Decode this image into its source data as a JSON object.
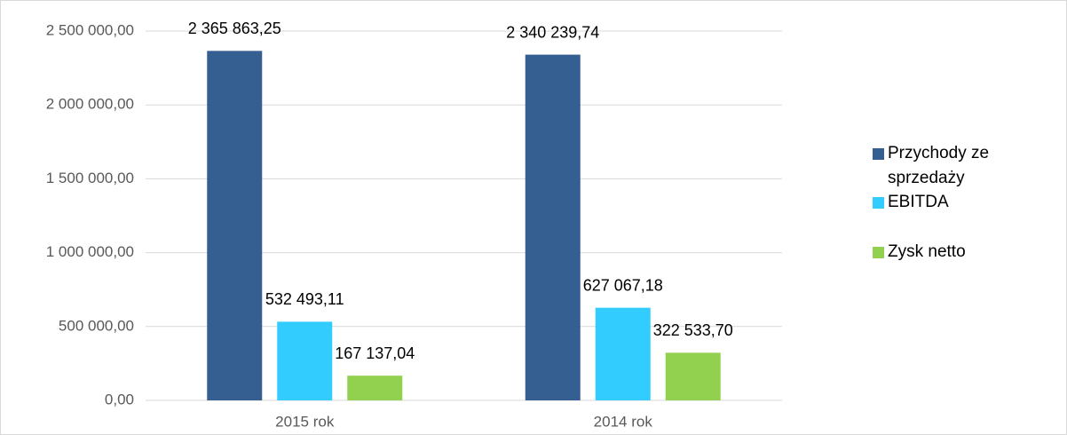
{
  "chart_data": {
    "type": "bar",
    "categories": [
      "2015 rok",
      "2014 rok"
    ],
    "series": [
      {
        "name": "Przychody ze sprzedaży",
        "color": "#365f91",
        "values": [
          2365863.25,
          2340239.74
        ],
        "value_labels": [
          "2 365 863,25",
          "2 340 239,74"
        ]
      },
      {
        "name": "EBITDA",
        "color": "#33ccff",
        "values": [
          532493.11,
          627067.18
        ],
        "value_labels": [
          "532 493,11",
          "627 067,18"
        ]
      },
      {
        "name": "Zysk netto",
        "color": "#92d050",
        "values": [
          167137.04,
          322533.7
        ],
        "value_labels": [
          "167 137,04",
          "322 533,70"
        ]
      }
    ],
    "ylim": [
      0,
      2500000
    ],
    "yticks": [
      {
        "value": 0,
        "label": "0,00"
      },
      {
        "value": 500000,
        "label": "500 000,00"
      },
      {
        "value": 1000000,
        "label": "1 000 000,00"
      },
      {
        "value": 1500000,
        "label": "1 500 000,00"
      },
      {
        "value": 2000000,
        "label": "2 000 000,00"
      },
      {
        "value": 2500000,
        "label": "2 500 000,00"
      }
    ],
    "grid": true,
    "legend": "right"
  }
}
